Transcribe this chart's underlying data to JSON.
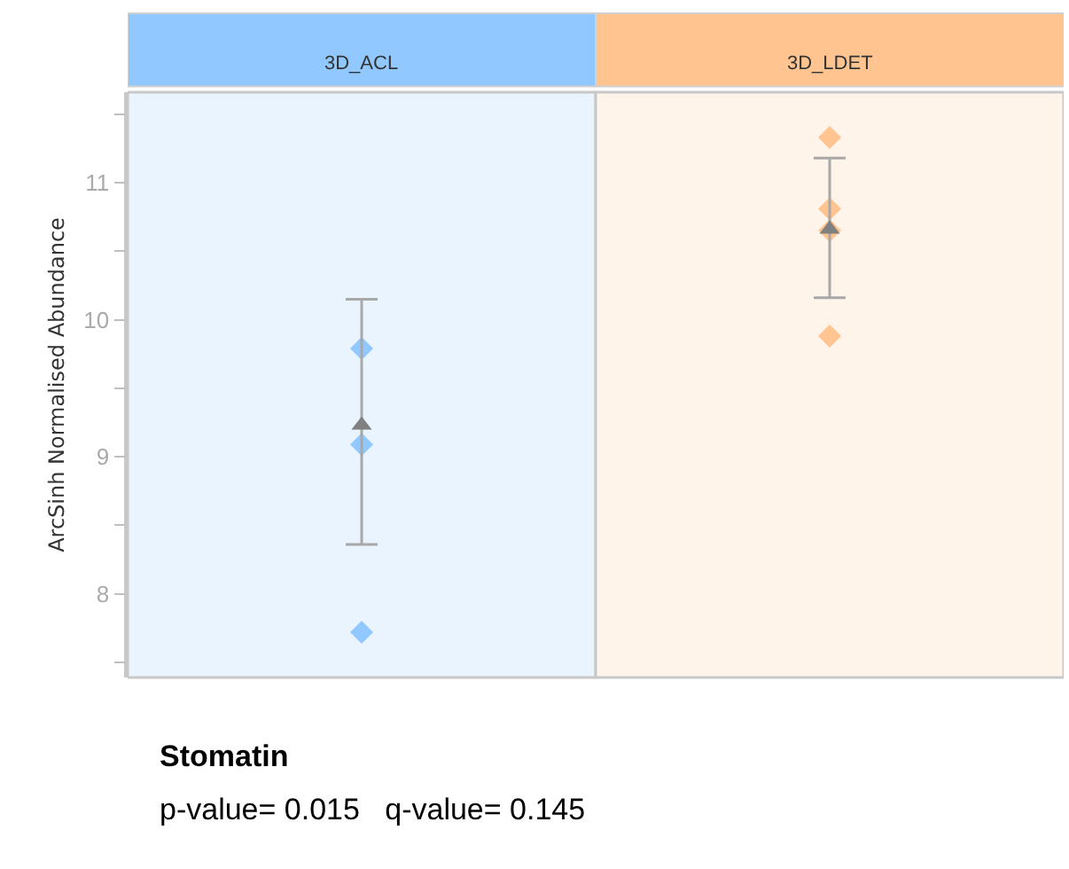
{
  "chart_data": {
    "type": "scatter",
    "title": "Stomatin",
    "ylabel": "ArcSinh Normalised Abundance",
    "annotations": [
      "p-value= 0.015   q-value= 0.145"
    ],
    "categories": [
      "3D_ACL",
      "3D_LDET"
    ],
    "series": [
      {
        "marker": "diamond",
        "x": [
          "3D_ACL",
          "3D_ACL",
          "3D_ACL",
          "3D_LDET",
          "3D_LDET",
          "3D_LDET",
          "3D_LDET"
        ],
        "values": [
          9.79,
          9.09,
          7.72,
          11.33,
          10.81,
          10.65,
          9.88
        ],
        "colors": [
          "#91c8ff",
          "#91c8ff",
          "#91c8ff",
          "#ffc48f",
          "#ffc48f",
          "#ffc48f",
          "#ffc48f"
        ]
      },
      {
        "marker": "triangle",
        "color": "#808080",
        "x": [
          "3D_ACL",
          "3D_LDET"
        ],
        "values": [
          9.23,
          10.66
        ],
        "errors": [
          [
            8.36,
            10.15
          ],
          [
            10.16,
            11.18
          ]
        ]
      }
    ],
    "ylim": [
      7.39,
      11.66
    ],
    "yticks": [
      {
        "value": 7.5,
        "label": null
      },
      8,
      {
        "value": 8.5,
        "label": null
      },
      9,
      {
        "value": 9.5,
        "label": null
      },
      10,
      {
        "value": 10.5,
        "label": null
      },
      11,
      {
        "value": 11.5,
        "label": null
      }
    ],
    "bands": [
      {
        "axis": "x",
        "from": "3D_ACL",
        "to": "3D_ACL",
        "color": "#eaf4ff"
      },
      {
        "axis": "x",
        "from": "3D_LDET",
        "to": "3D_LDET",
        "color": "#fff4ea"
      }
    ],
    "tick_labels": "y",
    "grid": false
  }
}
